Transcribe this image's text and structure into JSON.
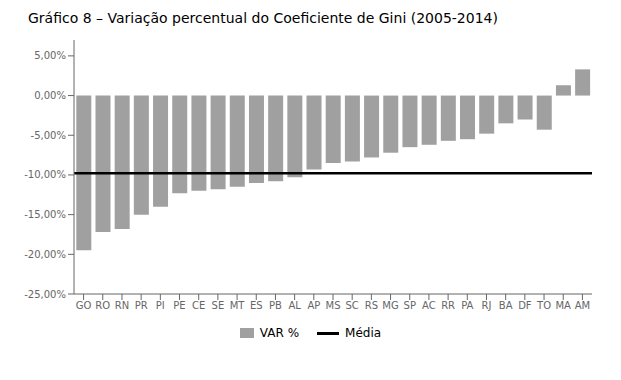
{
  "chart_data": {
    "type": "bar",
    "title": "Gráfico 8 – Variação percentual do Coeficiente de Gini (2005-2014)",
    "categories": [
      "GO",
      "RO",
      "RN",
      "PR",
      "PI",
      "PE",
      "CE",
      "SE",
      "MT",
      "ES",
      "PB",
      "AL",
      "AP",
      "MS",
      "SC",
      "RS",
      "MG",
      "SP",
      "AC",
      "RR",
      "PA",
      "RJ",
      "BA",
      "DF",
      "TO",
      "MA",
      "AM"
    ],
    "series": [
      {
        "name": "VAR %",
        "type": "bar",
        "color": "#a0a0a0",
        "values": [
          -19.5,
          -17.2,
          -16.8,
          -15.0,
          -14.0,
          -12.3,
          -12.0,
          -11.8,
          -11.5,
          -11.0,
          -10.8,
          -10.3,
          -9.3,
          -8.5,
          -8.3,
          -7.8,
          -7.2,
          -6.5,
          -6.2,
          -5.7,
          -5.5,
          -4.8,
          -3.5,
          -3.0,
          -4.3,
          1.3,
          3.3
        ]
      }
    ],
    "mean_line": {
      "name": "Média",
      "value": -9.8,
      "color": "#000000"
    },
    "ylim": [
      -25.0,
      7.0
    ],
    "yticks": [
      {
        "value": 5.0,
        "label": "5,00%"
      },
      {
        "value": 0.0,
        "label": "0,00%"
      },
      {
        "value": -5.0,
        "label": "-5,00%"
      },
      {
        "value": -10.0,
        "label": "-10,00%"
      },
      {
        "value": -15.0,
        "label": "-15,00%"
      },
      {
        "value": -20.0,
        "label": "-20,00%"
      },
      {
        "value": -25.0,
        "label": "-25,00%"
      }
    ],
    "grid": false,
    "legend": "bottom"
  }
}
